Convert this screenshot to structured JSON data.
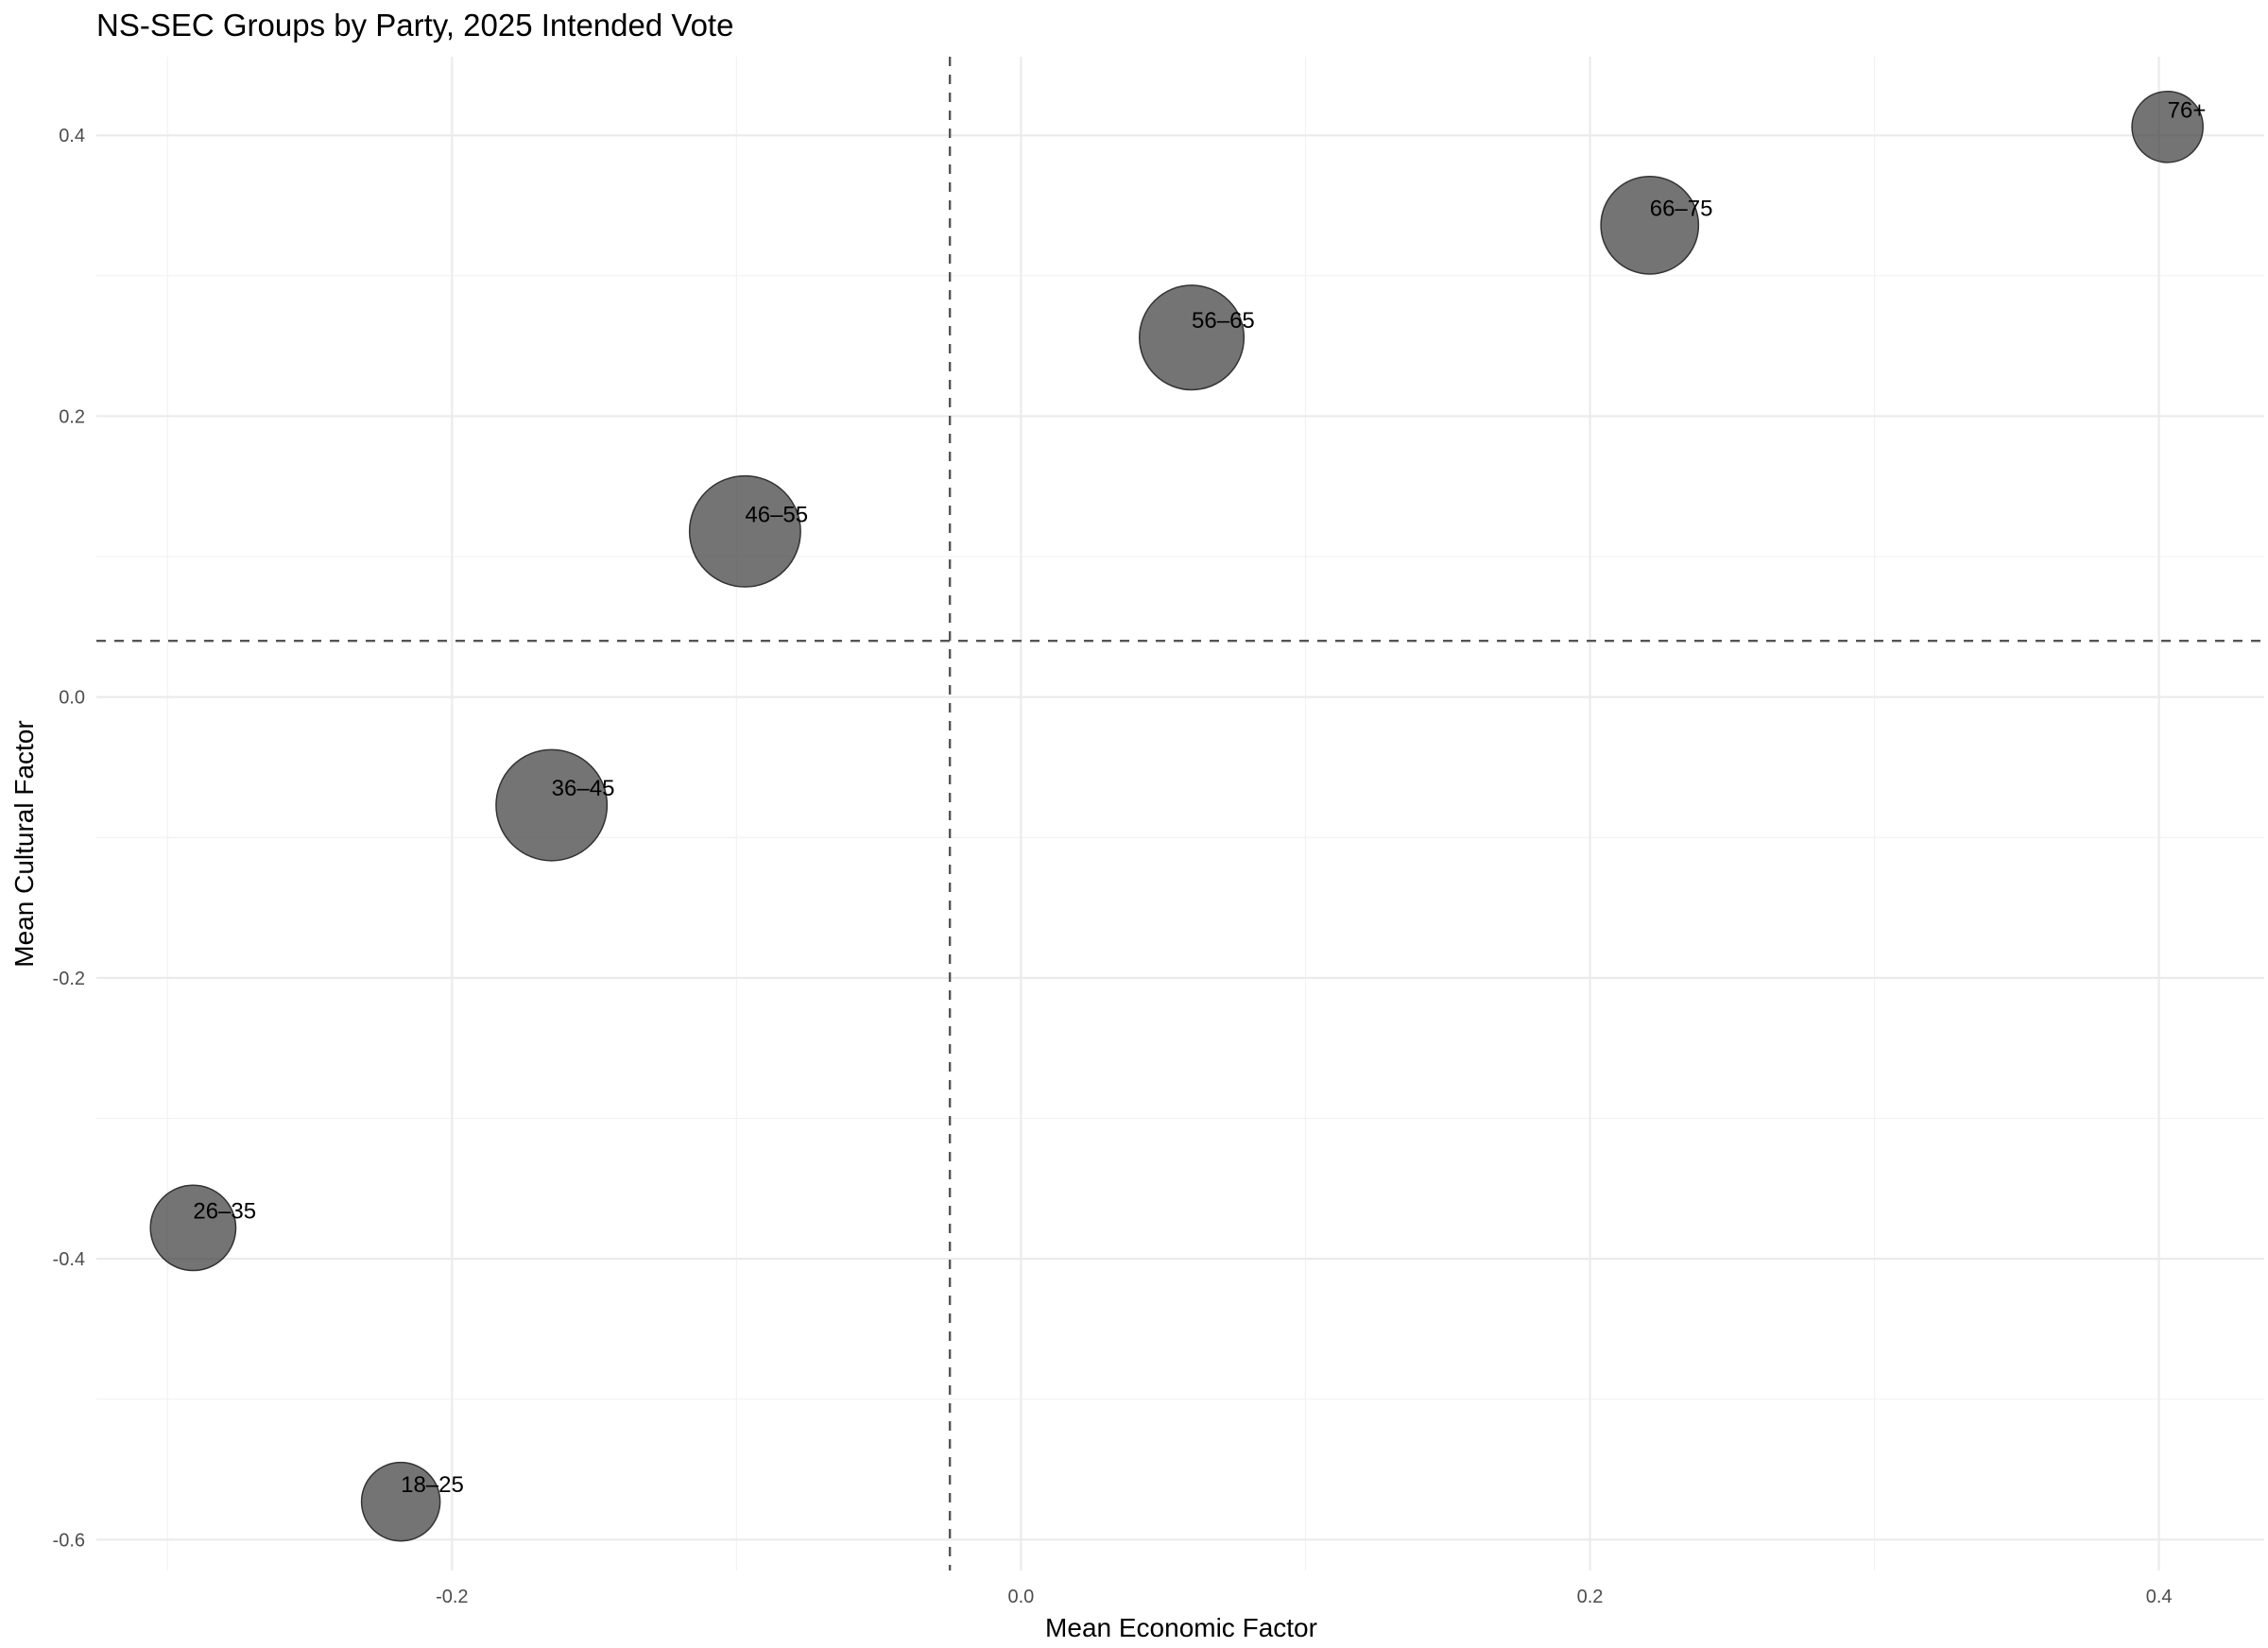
{
  "chart_data": {
    "type": "scatter",
    "title": "NS-SEC Groups by Party, 2025 Intended Vote",
    "xlabel": "Mean Economic Factor",
    "ylabel": "Mean Cultural Factor",
    "xlim": [
      -0.325,
      0.437
    ],
    "ylim": [
      -0.622,
      0.456
    ],
    "x_ticks": [
      -0.2,
      0.0,
      0.2,
      0.4
    ],
    "x_tick_labels": [
      "-0.2",
      "0.0",
      "0.2",
      "0.4"
    ],
    "y_ticks": [
      -0.6,
      -0.4,
      -0.2,
      0.0,
      0.2,
      0.4
    ],
    "y_tick_labels": [
      "-0.6",
      "-0.4",
      "-0.2",
      "0.0",
      "0.2",
      "0.4"
    ],
    "grid": true,
    "reference_lines": {
      "x": -0.025,
      "y": 0.04,
      "style": "dashed"
    },
    "bubble_color": "#464646",
    "points": [
      {
        "label": "18–25",
        "x": -0.218,
        "y": -0.573,
        "size": 2.2
      },
      {
        "label": "26–35",
        "x": -0.291,
        "y": -0.378,
        "size": 2.6
      },
      {
        "label": "36–45",
        "x": -0.165,
        "y": -0.077,
        "size": 4.4
      },
      {
        "label": "46–55",
        "x": -0.097,
        "y": 0.118,
        "size": 4.4
      },
      {
        "label": "56–65",
        "x": 0.06,
        "y": 0.256,
        "size": 3.9
      },
      {
        "label": "66–75",
        "x": 0.221,
        "y": 0.336,
        "size": 3.4
      },
      {
        "label": "76+",
        "x": 0.403,
        "y": 0.406,
        "size": 1.8
      }
    ]
  }
}
